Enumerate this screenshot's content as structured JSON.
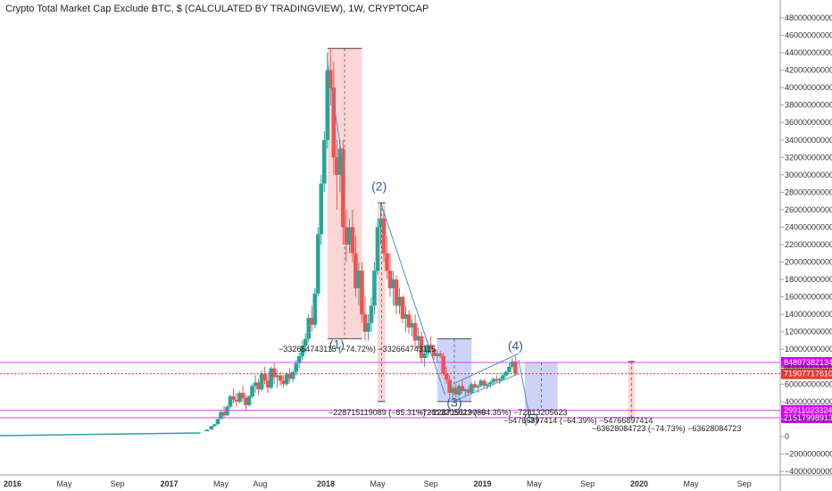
{
  "title": "Crypto Total Market Cap Exclude BTC, $ (CALCULATED BY TRADINGVIEW), 1W, CRYPTOCAP",
  "colors": {
    "up": "#26a69a",
    "down": "#ef5350",
    "magenta": "#e040fb",
    "red_box": "#f8a5a5",
    "blue_box": "#8e9bef",
    "trend": "#4a90c8",
    "price_label": "#e53935",
    "level_label": "#d500f9"
  },
  "chart_data": {
    "type": "candlestick",
    "title": "Crypto Total Market Cap Exclude BTC, $ (CALCULATED BY TRADINGVIEW), 1W, CRYPTOCAP",
    "ylim": [
      -40000000000,
      480000000000
    ],
    "y_ticks": [
      "480000000000",
      "460000000000",
      "440000000000",
      "420000000000",
      "400000000000",
      "380000000000",
      "360000000000",
      "340000000000",
      "320000000000",
      "300000000000",
      "280000000000",
      "260000000000",
      "240000000000",
      "220000000000",
      "200000000000",
      "180000000000",
      "160000000000",
      "140000000000",
      "120000000000",
      "100000000000",
      "80000000000",
      "60000000000",
      "40000000000",
      "20000000000",
      "0",
      "−20000000000",
      "−40000000000"
    ],
    "x_ticks": [
      {
        "label": "2016",
        "t": 2016.0,
        "bold": true
      },
      {
        "label": "May",
        "t": 2016.33,
        "bold": false
      },
      {
        "label": "Sep",
        "t": 2016.67,
        "bold": false
      },
      {
        "label": "2017",
        "t": 2017.0,
        "bold": true
      },
      {
        "label": "May",
        "t": 2017.33,
        "bold": false
      },
      {
        "label": "Aug",
        "t": 2017.58,
        "bold": false
      },
      {
        "label": "2018",
        "t": 2018.0,
        "bold": true
      },
      {
        "label": "May",
        "t": 2018.33,
        "bold": false
      },
      {
        "label": "Sep",
        "t": 2018.67,
        "bold": false
      },
      {
        "label": "2019",
        "t": 2019.0,
        "bold": true
      },
      {
        "label": "May",
        "t": 2019.33,
        "bold": false
      },
      {
        "label": "Sep",
        "t": 2019.67,
        "bold": false
      },
      {
        "label": "2020",
        "t": 2020.0,
        "bold": true
      },
      {
        "label": "May",
        "t": 2020.33,
        "bold": false
      },
      {
        "label": "Sep",
        "t": 2020.67,
        "bold": false
      }
    ],
    "xlim": [
      2015.92,
      2020.9
    ],
    "candles": [
      [
        2016.0,
        1,
        1,
        1,
        1
      ],
      [
        2016.25,
        1,
        2,
        1,
        2
      ],
      [
        2016.5,
        2,
        3,
        2,
        3
      ],
      [
        2016.75,
        3,
        3,
        2,
        3
      ],
      [
        2017.0,
        3,
        4,
        3,
        4
      ],
      [
        2017.1,
        4,
        5,
        4,
        5
      ],
      [
        2017.2,
        5,
        6,
        5,
        6
      ],
      [
        2017.24,
        6,
        8,
        6,
        8
      ],
      [
        2017.27,
        8,
        12,
        8,
        12
      ],
      [
        2017.29,
        12,
        14,
        11,
        14
      ],
      [
        2017.31,
        14,
        20,
        14,
        20
      ],
      [
        2017.33,
        20,
        30,
        20,
        28
      ],
      [
        2017.35,
        28,
        35,
        22,
        24
      ],
      [
        2017.37,
        24,
        36,
        24,
        34
      ],
      [
        2017.39,
        34,
        48,
        32,
        46
      ],
      [
        2017.41,
        46,
        55,
        38,
        42
      ],
      [
        2017.43,
        42,
        50,
        34,
        40
      ],
      [
        2017.45,
        40,
        52,
        38,
        50
      ],
      [
        2017.47,
        50,
        58,
        40,
        44
      ],
      [
        2017.49,
        44,
        48,
        30,
        36
      ],
      [
        2017.51,
        36,
        48,
        34,
        46
      ],
      [
        2017.53,
        46,
        60,
        44,
        58
      ],
      [
        2017.55,
        58,
        70,
        50,
        62
      ],
      [
        2017.57,
        62,
        66,
        48,
        54
      ],
      [
        2017.59,
        54,
        76,
        52,
        72
      ],
      [
        2017.61,
        72,
        80,
        60,
        64
      ],
      [
        2017.63,
        64,
        72,
        50,
        56
      ],
      [
        2017.65,
        56,
        80,
        54,
        78
      ],
      [
        2017.67,
        78,
        84,
        60,
        68
      ],
      [
        2017.69,
        68,
        76,
        56,
        70
      ],
      [
        2017.71,
        70,
        74,
        58,
        64
      ],
      [
        2017.73,
        64,
        70,
        56,
        60
      ],
      [
        2017.75,
        60,
        74,
        58,
        72
      ],
      [
        2017.77,
        72,
        78,
        62,
        66
      ],
      [
        2017.79,
        66,
        76,
        62,
        74
      ],
      [
        2017.81,
        74,
        88,
        70,
        84
      ],
      [
        2017.83,
        84,
        96,
        78,
        92
      ],
      [
        2017.85,
        92,
        110,
        88,
        104
      ],
      [
        2017.87,
        104,
        118,
        96,
        112
      ],
      [
        2017.89,
        112,
        140,
        108,
        136
      ],
      [
        2017.91,
        136,
        150,
        120,
        128
      ],
      [
        2017.93,
        128,
        170,
        124,
        164
      ],
      [
        2017.95,
        164,
        240,
        160,
        232
      ],
      [
        2017.97,
        232,
        300,
        220,
        290
      ],
      [
        2017.99,
        290,
        350,
        280,
        340
      ],
      [
        2018.01,
        340,
        440,
        330,
        420
      ],
      [
        2018.03,
        420,
        445,
        380,
        400
      ],
      [
        2018.05,
        400,
        430,
        300,
        320
      ],
      [
        2018.07,
        320,
        340,
        260,
        300
      ],
      [
        2018.09,
        300,
        340,
        280,
        330
      ],
      [
        2018.11,
        330,
        340,
        220,
        240
      ],
      [
        2018.13,
        240,
        260,
        200,
        220
      ],
      [
        2018.15,
        220,
        250,
        210,
        240
      ],
      [
        2018.17,
        240,
        260,
        200,
        210
      ],
      [
        2018.19,
        210,
        230,
        160,
        170
      ],
      [
        2018.21,
        170,
        200,
        150,
        190
      ],
      [
        2018.23,
        190,
        200,
        130,
        140
      ],
      [
        2018.25,
        140,
        160,
        110,
        120
      ],
      [
        2018.27,
        120,
        140,
        110,
        130
      ],
      [
        2018.29,
        130,
        160,
        120,
        150
      ],
      [
        2018.31,
        150,
        200,
        140,
        190
      ],
      [
        2018.33,
        190,
        250,
        185,
        240
      ],
      [
        2018.35,
        240,
        268,
        220,
        250
      ],
      [
        2018.37,
        250,
        260,
        200,
        210
      ],
      [
        2018.39,
        210,
        230,
        180,
        190
      ],
      [
        2018.41,
        190,
        210,
        160,
        170
      ],
      [
        2018.43,
        170,
        190,
        150,
        180
      ],
      [
        2018.45,
        180,
        185,
        140,
        150
      ],
      [
        2018.47,
        150,
        170,
        140,
        160
      ],
      [
        2018.49,
        160,
        162,
        130,
        135
      ],
      [
        2018.51,
        135,
        150,
        120,
        140
      ],
      [
        2018.53,
        140,
        145,
        118,
        125
      ],
      [
        2018.55,
        125,
        135,
        115,
        130
      ],
      [
        2018.57,
        130,
        140,
        100,
        110
      ],
      [
        2018.59,
        110,
        125,
        100,
        115
      ],
      [
        2018.61,
        115,
        120,
        85,
        90
      ],
      [
        2018.63,
        90,
        105,
        80,
        95
      ],
      [
        2018.65,
        95,
        110,
        90,
        105
      ],
      [
        2018.67,
        105,
        115,
        95,
        100
      ],
      [
        2018.69,
        100,
        105,
        88,
        92
      ],
      [
        2018.71,
        92,
        100,
        85,
        95
      ],
      [
        2018.73,
        95,
        98,
        90,
        92
      ],
      [
        2018.75,
        92,
        96,
        70,
        72
      ],
      [
        2018.77,
        72,
        80,
        60,
        65
      ],
      [
        2018.79,
        65,
        70,
        45,
        50
      ],
      [
        2018.81,
        50,
        58,
        42,
        55
      ],
      [
        2018.83,
        55,
        60,
        45,
        48
      ],
      [
        2018.85,
        48,
        60,
        46,
        58
      ],
      [
        2018.87,
        58,
        65,
        50,
        52
      ],
      [
        2018.89,
        52,
        56,
        46,
        54
      ],
      [
        2018.91,
        54,
        58,
        48,
        50
      ],
      [
        2018.93,
        50,
        62,
        48,
        60
      ],
      [
        2018.95,
        60,
        64,
        52,
        56
      ],
      [
        2018.97,
        56,
        60,
        50,
        58
      ],
      [
        2018.99,
        58,
        66,
        56,
        64
      ],
      [
        2019.01,
        64,
        66,
        56,
        58
      ],
      [
        2019.03,
        58,
        62,
        54,
        60
      ],
      [
        2019.05,
        60,
        64,
        56,
        62
      ],
      [
        2019.07,
        62,
        68,
        60,
        66
      ],
      [
        2019.09,
        66,
        70,
        62,
        64
      ],
      [
        2019.11,
        64,
        68,
        60,
        66
      ],
      [
        2019.13,
        66,
        72,
        64,
        70
      ],
      [
        2019.15,
        70,
        76,
        68,
        74
      ],
      [
        2019.17,
        74,
        84,
        72,
        80
      ],
      [
        2019.19,
        80,
        90,
        78,
        86
      ],
      [
        2019.21,
        86,
        92,
        70,
        72
      ]
    ],
    "levels": [
      {
        "value": 84897382134,
        "label": "84897382134",
        "kind": "magenta"
      },
      {
        "value": 71907717610,
        "label": "71907717610",
        "kind": "price"
      },
      {
        "value": 29911023324,
        "label": "29911023324",
        "kind": "magenta"
      },
      {
        "value": 21517998913,
        "label": "21517998913",
        "kind": "magenta"
      }
    ],
    "annotations": [
      "−332664743115 (−74.72%) −332664743115",
      "−228715119089 (−85.31%) −228715119089",
      "−72813205623 (−64.35%) −72813205623",
      "−54766897414 (−64.39%) −54766897414",
      "−63628084723 (−74.73%) −63628084723"
    ],
    "wave_labels": [
      "(1)",
      "(2)",
      "(3)",
      "(4)",
      "(5)"
    ]
  }
}
